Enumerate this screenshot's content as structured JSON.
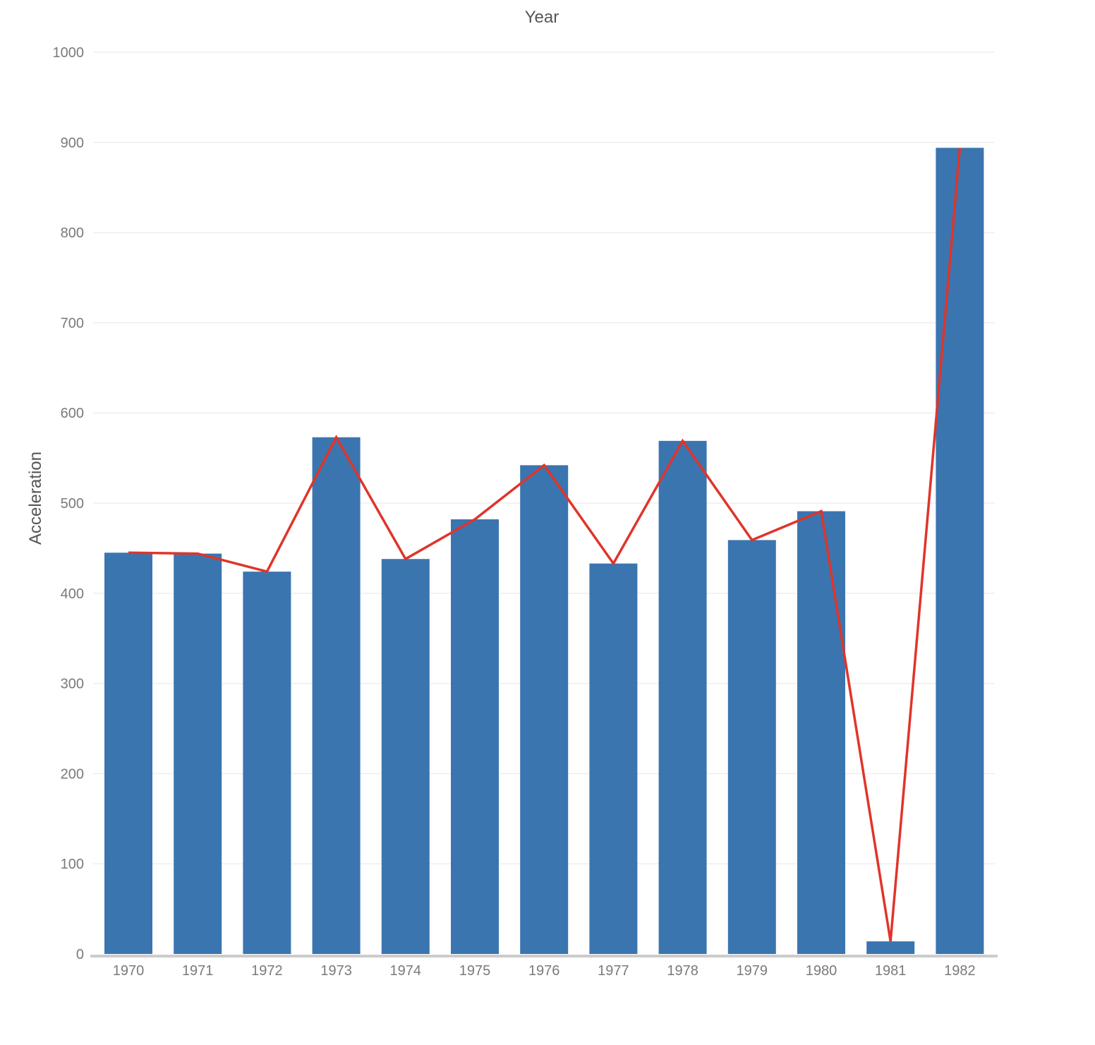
{
  "chart_data": {
    "type": "bar",
    "title": "",
    "xlabel": "Year",
    "ylabel": "Acceleration",
    "categories": [
      "1970",
      "1971",
      "1972",
      "1973",
      "1974",
      "1975",
      "1976",
      "1977",
      "1978",
      "1979",
      "1980",
      "1981",
      "1982"
    ],
    "series": [
      {
        "type": "bar",
        "values": [
          445,
          444,
          424,
          573,
          438,
          482,
          542,
          433,
          569,
          459,
          491,
          14,
          894
        ],
        "color": "#3b75af"
      },
      {
        "type": "line",
        "values": [
          445,
          444,
          424,
          573,
          438,
          482,
          542,
          433,
          569,
          459,
          491,
          14,
          894
        ],
        "color": "#e0342a"
      }
    ],
    "ylim": [
      0,
      1000
    ],
    "yticks": [
      0,
      100,
      200,
      300,
      400,
      500,
      600,
      700,
      800,
      900,
      1000
    ],
    "grid": true,
    "xlabel_position": "top",
    "legend": "none",
    "colors": {
      "axis": "#cccccc",
      "grid": "#eeeeee",
      "tick_text": "#7a7a7a",
      "axis_title": "#555555"
    }
  }
}
